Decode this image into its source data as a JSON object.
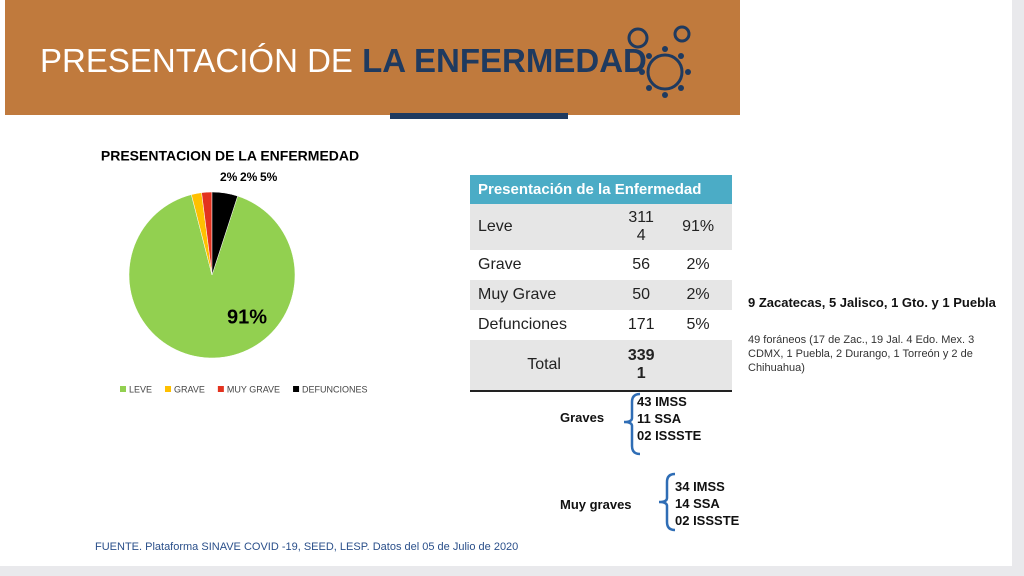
{
  "header": {
    "title_light": "PRESENTACIÓN DE ",
    "title_bold": "LA ENFERMEDAD"
  },
  "chart_data": {
    "type": "pie",
    "title": "PRESENTACION DE LA ENFERMEDAD",
    "categories": [
      "LEVE",
      "GRAVE",
      "MUY GRAVE",
      "DEFUNCIONES"
    ],
    "values": [
      91,
      2,
      2,
      5
    ],
    "value_labels": [
      "91%",
      "2%",
      "2%",
      "5%"
    ],
    "colors": [
      "#92d050",
      "#ffc000",
      "#e3321e",
      "#000000"
    ]
  },
  "table": {
    "title": "Presentación de la Enfermedad",
    "rows": [
      [
        "Leve",
        "3114",
        "91%"
      ],
      [
        "Grave",
        "56",
        "2%"
      ],
      [
        "Muy Grave",
        "50",
        "2%"
      ],
      [
        "Defunciones",
        "171",
        "5%"
      ],
      [
        "Total",
        "3391"
      ]
    ]
  },
  "notes": {
    "main": "9 Zacatecas, 5 Jalisco, 1 Gto. y 1 Puebla",
    "detail": "49 foráneos (17 de Zac., 19 Jal. 4 Edo. Mex. 3 CDMX, 1 Puebla, 2 Durango, 1 Torreón y 2 de Chihuahua)"
  },
  "graves": {
    "label": "Graves",
    "items": [
      "43 IMSS",
      "11 SSA",
      "02 ISSSTE"
    ]
  },
  "muy_graves": {
    "label": "Muy graves",
    "items": [
      "34 IMSS",
      "14 SSA",
      "02 ISSSTE"
    ]
  },
  "footer": "FUENTE. Plataforma SINAVE COVID -19, SEED, LESP. Datos del 05 de Julio de 2020"
}
